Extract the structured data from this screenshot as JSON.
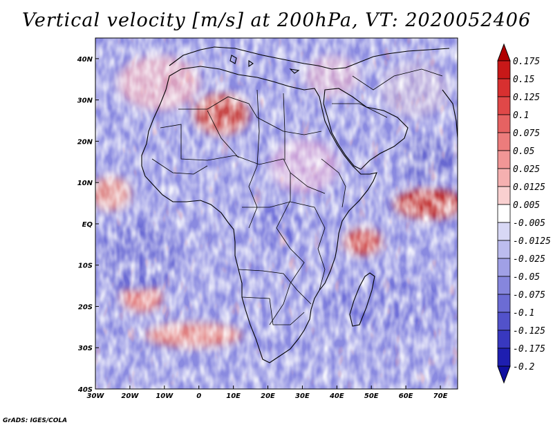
{
  "title": "Vertical velocity [m/s] at 200hPa, VT: 2020052406",
  "credit": "GrADS: IGES/COLA",
  "map": {
    "region": "Africa",
    "lon_labels": [
      "30W",
      "20W",
      "10W",
      "0",
      "10E",
      "20E",
      "30E",
      "40E",
      "50E",
      "60E",
      "70E"
    ],
    "lat_labels": [
      "40N",
      "30N",
      "20N",
      "10N",
      "EQ",
      "10S",
      "20S",
      "30S",
      "40S"
    ],
    "lon_range": [
      -30,
      75
    ],
    "lat_range": [
      -40,
      45
    ]
  },
  "colorbar": {
    "labels": [
      "0.175",
      "0.15",
      "0.125",
      "0.1",
      "0.075",
      "0.05",
      "0.025",
      "0.0125",
      "0.005",
      "-0.005",
      "-0.0125",
      "-0.025",
      "-0.05",
      "-0.075",
      "-0.1",
      "-0.125",
      "-0.175",
      "-0.2"
    ],
    "colors": [
      "#b00000",
      "#c81818",
      "#d83030",
      "#e04848",
      "#e66262",
      "#ec7c7c",
      "#f19696",
      "#f5b0b0",
      "#f9d0d0",
      "#ffffff",
      "#d8d8f5",
      "#bcbcee",
      "#a0a0e6",
      "#8686dd",
      "#6c6cd4",
      "#5252ca",
      "#3838bf",
      "#1e1eb0",
      "#1010a0"
    ]
  },
  "styles": {
    "background": "#ffffff",
    "coast_color": "#000000",
    "warm_color": "#e06060",
    "cool_color": "#7070d8"
  }
}
